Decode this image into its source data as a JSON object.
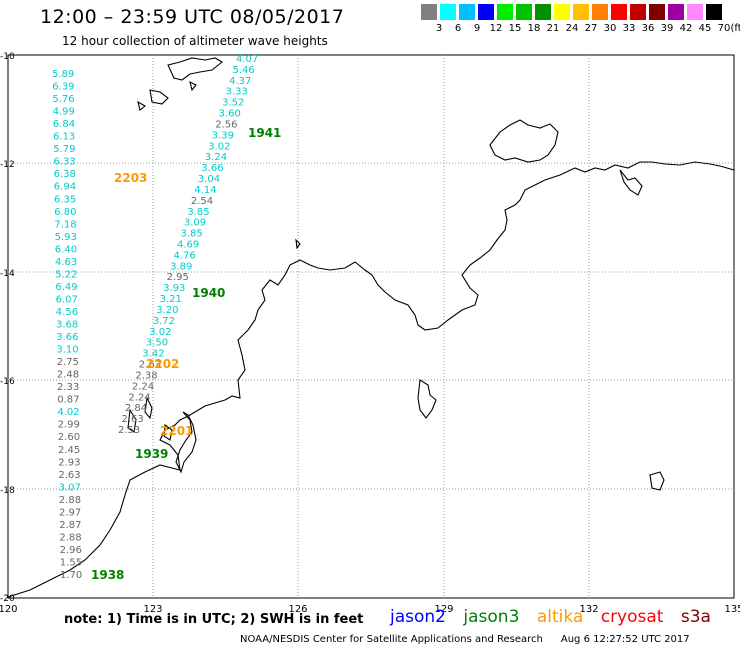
{
  "title": "12:00 – 23:59 UTC 08/05/2017",
  "subtitle": "12 hour collection of altimeter wave heights",
  "color_scale": {
    "colors": [
      "#808080",
      "#00ffff",
      "#00bfff",
      "#0000ff",
      "#00ee00",
      "#00c000",
      "#009000",
      "#ffff00",
      "#ffc000",
      "#ff8000",
      "#ff0000",
      "#c00000",
      "#800000",
      "#a000a0",
      "#ff88ff",
      "#000000"
    ],
    "labels": [
      "3",
      "6",
      "9",
      "12",
      "15",
      "18",
      "21",
      "24",
      "27",
      "30",
      "33",
      "36",
      "39",
      "42",
      "45",
      "70"
    ],
    "unit": "(ft)"
  },
  "axes": {
    "lon_labels": [
      "120",
      "123",
      "126",
      "129",
      "132",
      "135"
    ],
    "lat_labels": [
      "-10",
      "-12",
      "-14",
      "-16",
      "-18",
      "-20"
    ]
  },
  "passes": [
    {
      "id": "1941",
      "satellite": "jason3",
      "color": "#008000"
    },
    {
      "id": "1940",
      "satellite": "jason3",
      "color": "#008000"
    },
    {
      "id": "1939",
      "satellite": "jason3",
      "color": "#008000"
    },
    {
      "id": "1938",
      "satellite": "jason3",
      "color": "#008000"
    },
    {
      "id": "2203",
      "satellite": "altika",
      "color": "#ff9900"
    },
    {
      "id": "2202",
      "satellite": "altika",
      "color": "#ff9900"
    },
    {
      "id": "2201",
      "satellite": "altika",
      "color": "#ff9900"
    }
  ],
  "tracks": {
    "left_track": {
      "values": [
        "5.89",
        "6.39",
        "5.76",
        "4.99",
        "6.84",
        "6.13",
        "5.79",
        "6.33",
        "6.38",
        "6.94",
        "6.35",
        "6.80",
        "7.18",
        "5.93",
        "6.40",
        "4.63",
        "5.22",
        "6.49",
        "6.07",
        "4.56",
        "3.68",
        "3.66",
        "3.10",
        "2.75",
        "2.48",
        "2.33",
        "0.87",
        "4.02",
        "2.99",
        "2.60",
        "2.45",
        "2.93",
        "2.63",
        "3.07",
        "2.88",
        "2.97",
        "2.87",
        "2.88",
        "2.96",
        "1.55",
        "1.70"
      ],
      "colors": [
        "c",
        "c",
        "c",
        "c",
        "c",
        "c",
        "c",
        "c",
        "c",
        "c",
        "c",
        "c",
        "c",
        "c",
        "c",
        "c",
        "c",
        "c",
        "c",
        "c",
        "c",
        "c",
        "c",
        "g",
        "g",
        "g",
        "g",
        "c",
        "g",
        "g",
        "g",
        "g",
        "g",
        "c",
        "g",
        "g",
        "g",
        "g",
        "g",
        "g",
        "g"
      ]
    },
    "right_track": {
      "values": [
        "4.07",
        "5.46",
        "4.37",
        "3.33",
        "3.52",
        "3.60",
        "2.56",
        "3.39",
        "3.02",
        "3.24",
        "3.66",
        "3.04",
        "4.14",
        "2.54",
        "3.85",
        "3.09",
        "3.85",
        "4.69",
        "4.76",
        "3.89",
        "2.95",
        "3.93",
        "3.21",
        "3.20",
        "3.72",
        "3.02",
        "3.50",
        "3.42",
        "2.63",
        "2.38",
        "2.24",
        "2.24",
        "2.84",
        "2.63",
        "2.53"
      ],
      "colors": [
        "c",
        "c",
        "c",
        "c",
        "c",
        "c",
        "g",
        "c",
        "c",
        "c",
        "c",
        "c",
        "c",
        "g",
        "c",
        "c",
        "c",
        "c",
        "c",
        "c",
        "g",
        "c",
        "c",
        "c",
        "c",
        "c",
        "c",
        "c",
        "g",
        "g",
        "g",
        "g",
        "g",
        "g",
        "g"
      ]
    }
  },
  "note": "note: 1) Time is in UTC; 2) SWH is in feet",
  "satellites": [
    {
      "name": "jason2",
      "color": "#0000ff"
    },
    {
      "name": "jason3",
      "color": "#008000"
    },
    {
      "name": "altika",
      "color": "#ff9900"
    },
    {
      "name": "cryosat",
      "color": "#ff0000"
    },
    {
      "name": "s3a",
      "color": "#800000"
    }
  ],
  "footer": {
    "credit": "NOAA/NESDIS Center for Satellite Applications and Research",
    "timestamp": "Aug  6 12:27:52 UTC 2017"
  }
}
